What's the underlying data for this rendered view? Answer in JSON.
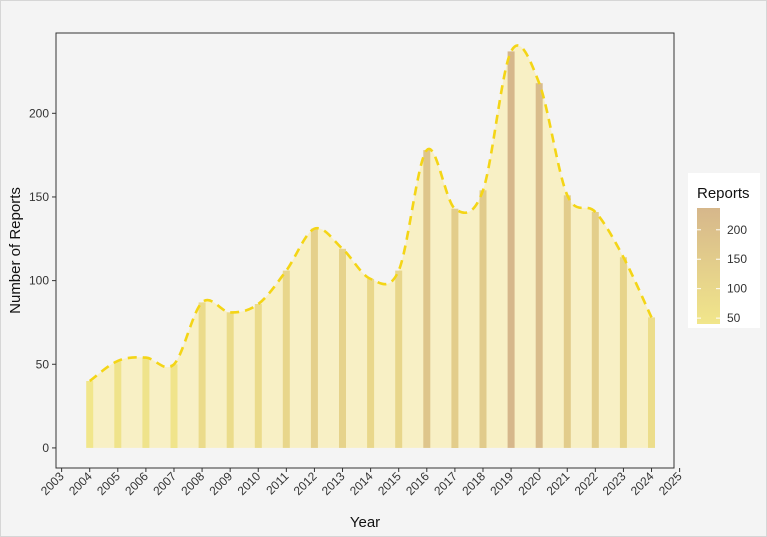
{
  "chart_data": {
    "type": "bar",
    "xlabel": "Year",
    "ylabel": "Number of Reports",
    "x_ticks": [
      2003,
      2004,
      2005,
      2006,
      2007,
      2008,
      2009,
      2010,
      2011,
      2012,
      2013,
      2014,
      2015,
      2016,
      2017,
      2018,
      2019,
      2020,
      2021,
      2022,
      2023,
      2024,
      2025
    ],
    "y_ticks": [
      0,
      50,
      100,
      150,
      200
    ],
    "xlim": [
      2002.8,
      2024.8
    ],
    "ylim": [
      -12,
      248
    ],
    "series": [
      {
        "x": [
          2004,
          2005,
          2006,
          2007,
          2008,
          2009,
          2010,
          2011,
          2012,
          2013,
          2014,
          2015,
          2016,
          2017,
          2018,
          2019,
          2020,
          2021,
          2022,
          2023,
          2024
        ],
        "values": [
          40,
          52,
          54,
          50,
          87,
          81,
          86,
          106,
          131,
          119,
          101,
          106,
          178,
          143,
          154,
          237,
          218,
          151,
          141,
          114,
          78
        ]
      }
    ],
    "legend": {
      "title": "Reports",
      "ticks": [
        50,
        100,
        150,
        200
      ],
      "range": [
        40,
        237
      ],
      "placement": "right"
    },
    "colors": {
      "low": "#f1e68b",
      "high": "#d6b78b",
      "line": "#f4d516",
      "area": "#f8f0c0",
      "panel": "#f4f4f4",
      "panel_border": "#333333"
    },
    "grid": false
  }
}
